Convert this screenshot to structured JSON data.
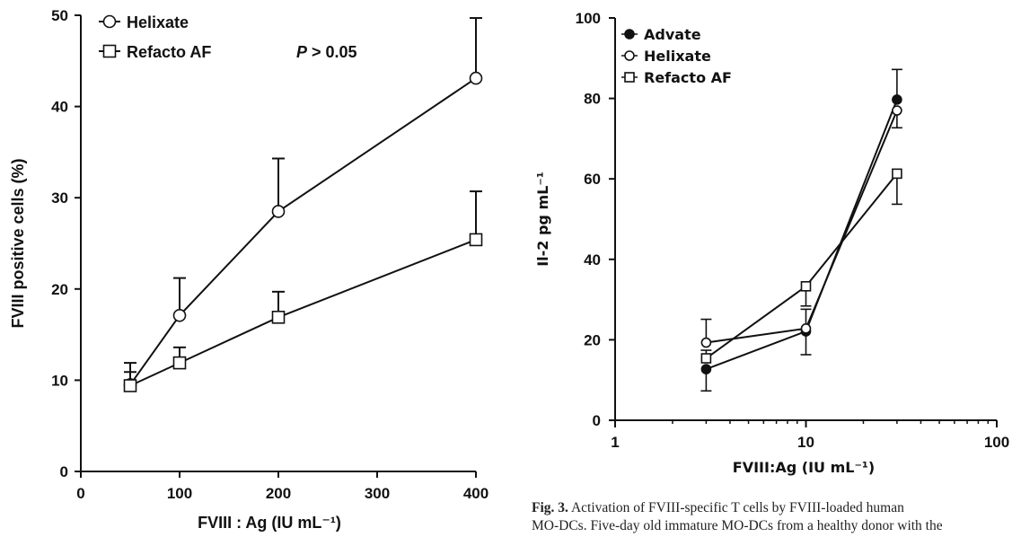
{
  "chart_data": [
    {
      "type": "line",
      "xlabel": "FVIII : Ag (IU mL⁻¹)",
      "ylabel": "FVIII positive cells (%)",
      "xlim": [
        0,
        400
      ],
      "ylim": [
        0,
        50
      ],
      "xticks": [
        "0",
        "100",
        "200",
        "300",
        "400"
      ],
      "yticks": [
        "0",
        "10",
        "20",
        "30",
        "40",
        "50"
      ],
      "annotation": "P > 0.05",
      "annotation_italic": "P",
      "annotation_rest": " > 0.05",
      "legend_position": "top-left",
      "series": [
        {
          "name": "Helixate",
          "marker": "open-circle",
          "x": [
            50,
            100,
            200,
            400
          ],
          "y": [
            9.5,
            17.1,
            28.5,
            43.1
          ],
          "err": [
            2.4,
            4.1,
            5.8,
            6.6
          ]
        },
        {
          "name": "Refacto AF",
          "marker": "open-square",
          "x": [
            50,
            100,
            200,
            400
          ],
          "y": [
            9.4,
            11.9,
            16.9,
            25.4
          ],
          "err": [
            1.5,
            1.7,
            2.8,
            5.3
          ]
        }
      ]
    },
    {
      "type": "line",
      "xscale": "log",
      "xlabel": "FVIII:Ag (IU mL⁻¹)",
      "ylabel": "Il-2 pg mL⁻¹",
      "xlim": [
        1,
        100
      ],
      "ylim": [
        0,
        100
      ],
      "xticks": [
        "1",
        "10",
        "100"
      ],
      "yticks": [
        "0",
        "20",
        "40",
        "60",
        "80",
        "100"
      ],
      "legend_position": "top-left",
      "series": [
        {
          "name": "Advate",
          "marker": "filled-circle",
          "x": [
            3,
            10,
            30
          ],
          "y": [
            12.7,
            22.1,
            79.7
          ],
          "err": [
            5.4,
            5.8,
            7.5
          ],
          "errdir": [
            -1,
            -1,
            1
          ]
        },
        {
          "name": "Helixate",
          "marker": "open-circle",
          "x": [
            3,
            10,
            30
          ],
          "y": [
            19.3,
            22.8,
            77.0
          ],
          "err": [
            5.8,
            4.8,
            4.3
          ],
          "errdir": [
            1,
            1,
            -1
          ]
        },
        {
          "name": "Refacto AF",
          "marker": "open-square",
          "x": [
            3,
            10,
            30
          ],
          "y": [
            15.4,
            33.3,
            61.3
          ],
          "err": [
            2.0,
            4.9,
            7.6
          ],
          "errdir": [
            1,
            -1,
            -1
          ]
        }
      ]
    }
  ],
  "caption": {
    "label": "Fig. 3.",
    "line1": "Activation of FVIII-specific T cells by FVIII-loaded human",
    "line2": "MO-DCs. Five-day old immature MO-DCs from a healthy donor with the"
  }
}
